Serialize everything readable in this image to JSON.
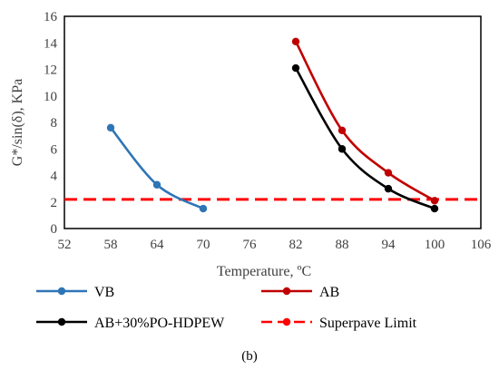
{
  "caption": "(b)",
  "chart_data": {
    "type": "line",
    "xlabel": "Temperature, ºC",
    "ylabel": "G*/sin(δ), KPa",
    "xlim": [
      52,
      106
    ],
    "ylim": [
      0,
      16
    ],
    "xticks": [
      "52",
      "58",
      "64",
      "70",
      "76",
      "82",
      "88",
      "94",
      "100",
      "106"
    ],
    "yticks": [
      "0",
      "2",
      "4",
      "6",
      "8",
      "10",
      "12",
      "14",
      "16"
    ],
    "grid": false,
    "legend": "bottom",
    "series": [
      {
        "name": "VB",
        "color": "#2E75B6",
        "style": "solid",
        "marker": true,
        "x": [
          58,
          64,
          70
        ],
        "y": [
          7.6,
          3.3,
          1.5
        ]
      },
      {
        "name": "AB",
        "color": "#C00000",
        "style": "solid",
        "marker": true,
        "x": [
          82,
          88,
          94,
          100
        ],
        "y": [
          14.1,
          7.4,
          4.2,
          2.1
        ]
      },
      {
        "name": "AB+30%PO-HDPEW",
        "color": "#000000",
        "style": "solid",
        "marker": true,
        "x": [
          82,
          88,
          94,
          100
        ],
        "y": [
          12.1,
          6.0,
          3.0,
          1.5
        ]
      },
      {
        "name": "Superpave Limit",
        "color": "#FF0000",
        "style": "dashed",
        "marker": false,
        "x": [
          52,
          106
        ],
        "y": [
          2.2,
          2.2
        ]
      }
    ]
  }
}
